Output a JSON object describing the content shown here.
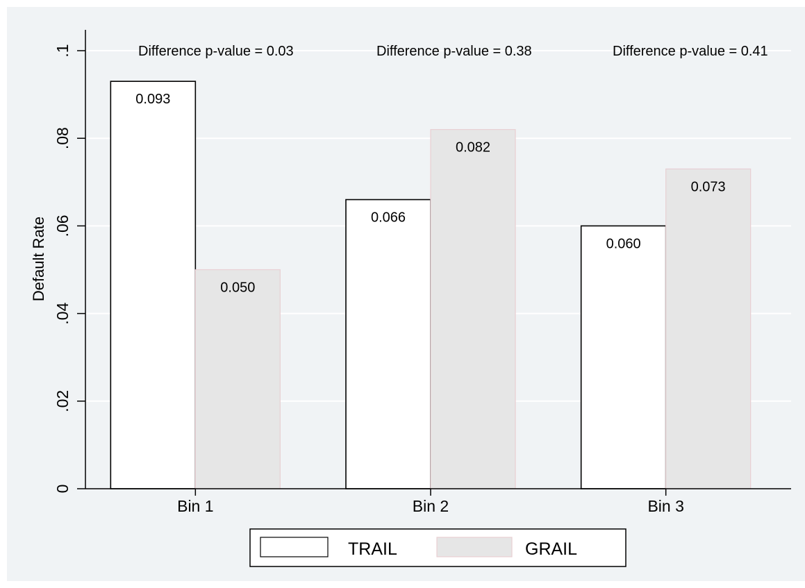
{
  "chart_data": {
    "type": "bar",
    "categories": [
      "Bin 1",
      "Bin 2",
      "Bin 3"
    ],
    "series": [
      {
        "name": "TRAIL",
        "values": [
          0.093,
          0.066,
          0.06
        ],
        "labels": [
          "0.093",
          "0.066",
          "0.060"
        ],
        "fill": "#ffffff",
        "stroke": "#000000"
      },
      {
        "name": "GRAIL",
        "values": [
          0.05,
          0.082,
          0.073
        ],
        "labels": [
          "0.050",
          "0.082",
          "0.073"
        ],
        "fill": "#e6e6e6",
        "stroke": "#e8cfd3"
      }
    ],
    "annotations": [
      "Difference p-value = 0.03",
      "Difference p-value = 0.38",
      "Difference p-value = 0.41"
    ],
    "title": "",
    "xlabel": "",
    "ylabel": "Default Rate",
    "ylim": [
      0,
      0.1
    ],
    "yticks": [
      0,
      0.02,
      0.04,
      0.06,
      0.08,
      0.1
    ],
    "ytick_labels": [
      "0",
      ".02",
      ".04",
      ".06",
      ".08",
      ".1"
    ],
    "grid": true,
    "legend": "bottom"
  }
}
